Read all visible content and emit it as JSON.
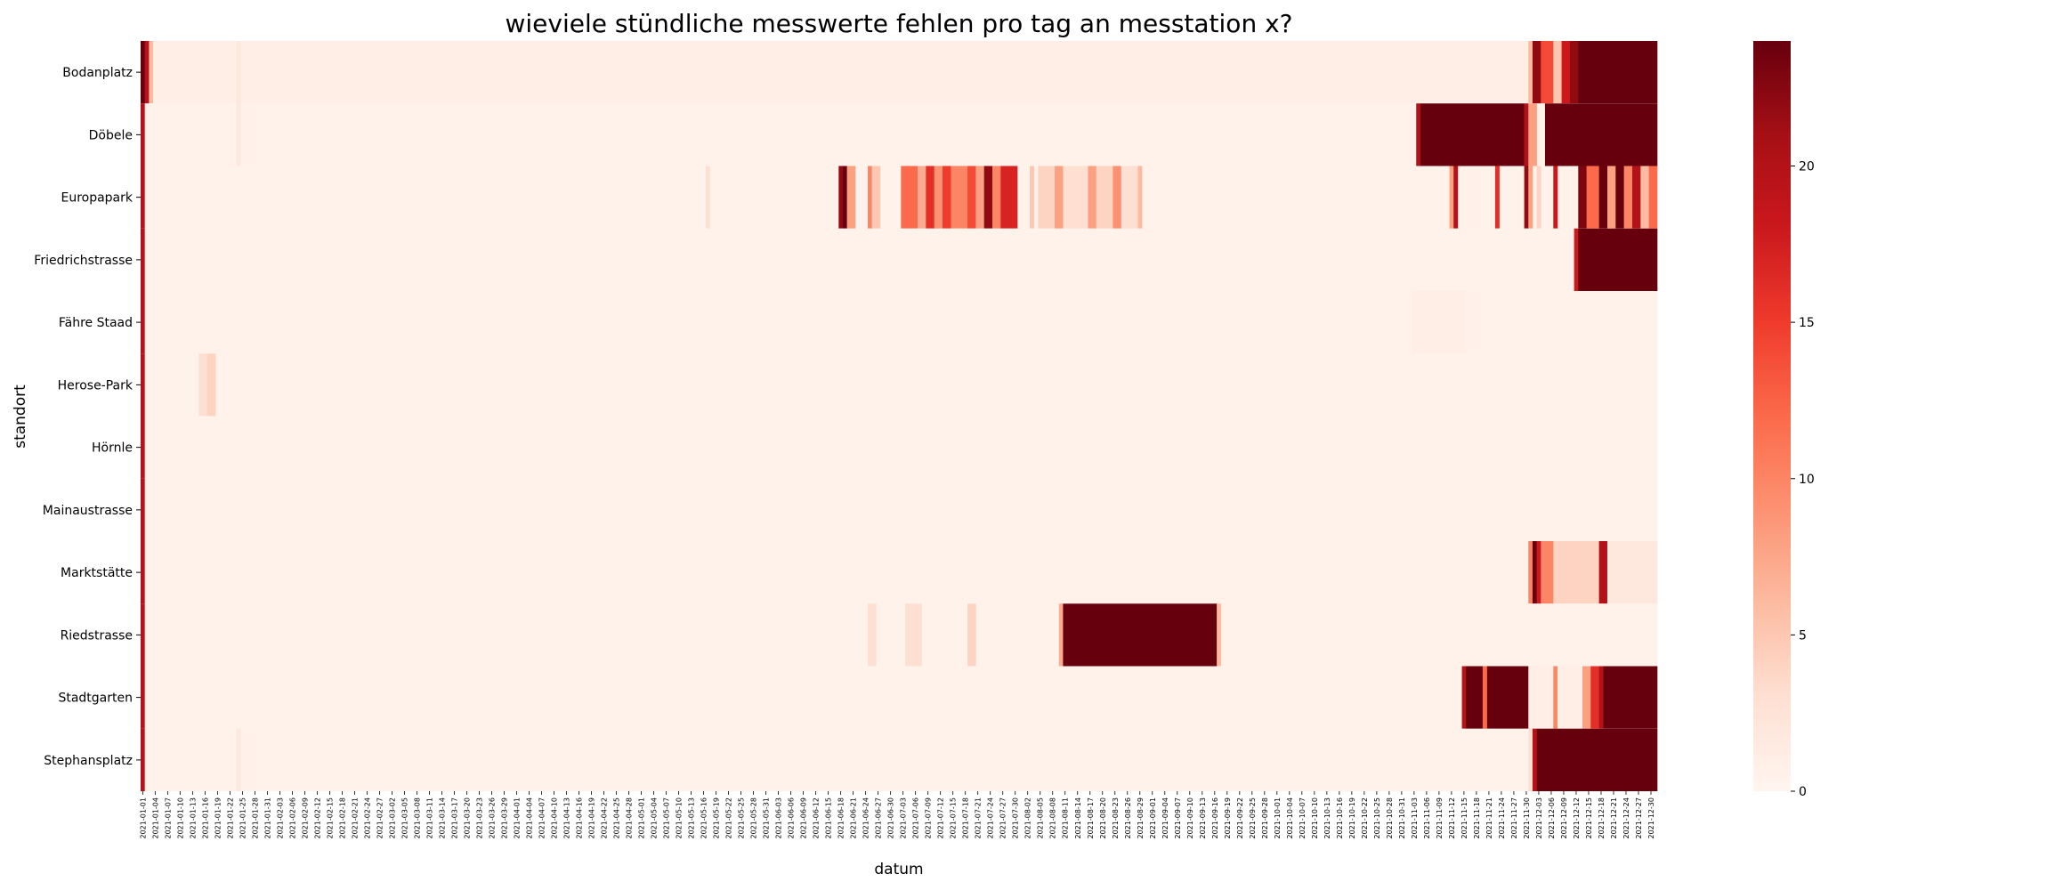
{
  "chart_data": {
    "type": "heatmap",
    "title": "wieviele stündliche messwerte fehlen pro tag an messtation x?",
    "xlabel": "datum",
    "ylabel": "standort",
    "rows": [
      "Bodanplatz",
      "Döbele",
      "Europapark",
      "Friedrichstrasse",
      "Fähre Staad",
      "Herose-Park",
      "Hörnle",
      "Mainaustrasse",
      "Marktstätte",
      "Riedstrasse",
      "Stadtgarten",
      "Stephansplatz"
    ],
    "x_start_date": "2021-01-01",
    "x_end_date": "2021-12-31",
    "x_tick_every_days": 3,
    "colormap": "Reds",
    "colorbar": {
      "vmin": 0,
      "vmax": 24,
      "ticks": [
        0,
        5,
        10,
        15,
        20
      ]
    },
    "segments": [
      {
        "row": "Bodanplatz",
        "from": "2021-01-01",
        "to": "2021-01-01",
        "value": 24
      },
      {
        "row": "Bodanplatz",
        "from": "2021-01-02",
        "to": "2021-01-02",
        "value": 20
      },
      {
        "row": "Bodanplatz",
        "from": "2021-01-03",
        "to": "2021-01-03",
        "value": 6
      },
      {
        "row": "Bodanplatz",
        "from": "2021-01-04",
        "to": "2021-12-31",
        "value": 1
      },
      {
        "row": "Bodanplatz",
        "from": "2021-01-24",
        "to": "2021-01-24",
        "value": 2
      },
      {
        "row": "Bodanplatz",
        "from": "2021-12-01",
        "to": "2021-12-01",
        "value": 6
      },
      {
        "row": "Bodanplatz",
        "from": "2021-12-02",
        "to": "2021-12-03",
        "value": 22
      },
      {
        "row": "Bodanplatz",
        "from": "2021-12-04",
        "to": "2021-12-06",
        "value": 14
      },
      {
        "row": "Bodanplatz",
        "from": "2021-12-07",
        "to": "2021-12-08",
        "value": 5
      },
      {
        "row": "Bodanplatz",
        "from": "2021-12-09",
        "to": "2021-12-10",
        "value": 18
      },
      {
        "row": "Bodanplatz",
        "from": "2021-12-11",
        "to": "2021-12-12",
        "value": 22
      },
      {
        "row": "Bodanplatz",
        "from": "2021-12-13",
        "to": "2021-12-31",
        "value": 24
      },
      {
        "row": "Döbele",
        "from": "2021-01-01",
        "to": "2021-01-01",
        "value": 20
      },
      {
        "row": "Döbele",
        "from": "2021-01-02",
        "to": "2021-12-31",
        "value": 0.5
      },
      {
        "row": "Döbele",
        "from": "2021-01-24",
        "to": "2021-01-24",
        "value": 2
      },
      {
        "row": "Döbele",
        "from": "2021-11-04",
        "to": "2021-11-04",
        "value": 20
      },
      {
        "row": "Döbele",
        "from": "2021-11-05",
        "to": "2021-11-29",
        "value": 24
      },
      {
        "row": "Döbele",
        "from": "2021-11-30",
        "to": "2021-11-30",
        "value": 20
      },
      {
        "row": "Döbele",
        "from": "2021-12-01",
        "to": "2021-12-02",
        "value": 8
      },
      {
        "row": "Döbele",
        "from": "2021-12-05",
        "to": "2021-12-31",
        "value": 24
      },
      {
        "row": "Europapark",
        "from": "2021-01-01",
        "to": "2021-01-01",
        "value": 20
      },
      {
        "row": "Europapark",
        "from": "2021-01-02",
        "to": "2021-12-31",
        "value": 0.5
      },
      {
        "row": "Europapark",
        "from": "2021-05-17",
        "to": "2021-05-17",
        "value": 3
      },
      {
        "row": "Europapark",
        "from": "2021-06-18",
        "to": "2021-06-18",
        "value": 22
      },
      {
        "row": "Europapark",
        "from": "2021-06-19",
        "to": "2021-06-19",
        "value": 24
      },
      {
        "row": "Europapark",
        "from": "2021-06-20",
        "to": "2021-06-21",
        "value": 8
      },
      {
        "row": "Europapark",
        "from": "2021-06-25",
        "to": "2021-06-25",
        "value": 10
      },
      {
        "row": "Europapark",
        "from": "2021-06-26",
        "to": "2021-06-27",
        "value": 5
      },
      {
        "row": "Europapark",
        "from": "2021-07-03",
        "to": "2021-07-06",
        "value": 12
      },
      {
        "row": "Europapark",
        "from": "2021-07-07",
        "to": "2021-07-08",
        "value": 7
      },
      {
        "row": "Europapark",
        "from": "2021-07-09",
        "to": "2021-07-10",
        "value": 16
      },
      {
        "row": "Europapark",
        "from": "2021-07-11",
        "to": "2021-07-12",
        "value": 9
      },
      {
        "row": "Europapark",
        "from": "2021-07-13",
        "to": "2021-07-14",
        "value": 15
      },
      {
        "row": "Europapark",
        "from": "2021-07-15",
        "to": "2021-07-18",
        "value": 10
      },
      {
        "row": "Europapark",
        "from": "2021-07-19",
        "to": "2021-07-20",
        "value": 14
      },
      {
        "row": "Europapark",
        "from": "2021-07-21",
        "to": "2021-07-22",
        "value": 8
      },
      {
        "row": "Europapark",
        "from": "2021-07-23",
        "to": "2021-07-24",
        "value": 22
      },
      {
        "row": "Europapark",
        "from": "2021-07-25",
        "to": "2021-07-26",
        "value": 10
      },
      {
        "row": "Europapark",
        "from": "2021-07-27",
        "to": "2021-07-30",
        "value": 17
      },
      {
        "row": "Europapark",
        "from": "2021-08-03",
        "to": "2021-08-03",
        "value": 5
      },
      {
        "row": "Europapark",
        "from": "2021-08-05",
        "to": "2021-08-08",
        "value": 4
      },
      {
        "row": "Europapark",
        "from": "2021-08-09",
        "to": "2021-08-10",
        "value": 8
      },
      {
        "row": "Europapark",
        "from": "2021-08-11",
        "to": "2021-08-16",
        "value": 3
      },
      {
        "row": "Europapark",
        "from": "2021-08-17",
        "to": "2021-08-18",
        "value": 8
      },
      {
        "row": "Europapark",
        "from": "2021-08-19",
        "to": "2021-08-22",
        "value": 4
      },
      {
        "row": "Europapark",
        "from": "2021-08-23",
        "to": "2021-08-24",
        "value": 9
      },
      {
        "row": "Europapark",
        "from": "2021-08-25",
        "to": "2021-08-28",
        "value": 3
      },
      {
        "row": "Europapark",
        "from": "2021-08-29",
        "to": "2021-08-29",
        "value": 6
      },
      {
        "row": "Europapark",
        "from": "2021-11-12",
        "to": "2021-11-12",
        "value": 8
      },
      {
        "row": "Europapark",
        "from": "2021-11-13",
        "to": "2021-11-13",
        "value": 20
      },
      {
        "row": "Europapark",
        "from": "2021-11-23",
        "to": "2021-11-23",
        "value": 16
      },
      {
        "row": "Europapark",
        "from": "2021-11-30",
        "to": "2021-11-30",
        "value": 22
      },
      {
        "row": "Europapark",
        "from": "2021-12-01",
        "to": "2021-12-01",
        "value": 8
      },
      {
        "row": "Europapark",
        "from": "2021-12-03",
        "to": "2021-12-03",
        "value": 4
      },
      {
        "row": "Europapark",
        "from": "2021-12-07",
        "to": "2021-12-07",
        "value": 18
      },
      {
        "row": "Europapark",
        "from": "2021-12-13",
        "to": "2021-12-14",
        "value": 23
      },
      {
        "row": "Europapark",
        "from": "2021-12-15",
        "to": "2021-12-17",
        "value": 12
      },
      {
        "row": "Europapark",
        "from": "2021-12-18",
        "to": "2021-12-19",
        "value": 24
      },
      {
        "row": "Europapark",
        "from": "2021-12-20",
        "to": "2021-12-21",
        "value": 8
      },
      {
        "row": "Europapark",
        "from": "2021-12-22",
        "to": "2021-12-23",
        "value": 24
      },
      {
        "row": "Europapark",
        "from": "2021-12-24",
        "to": "2021-12-25",
        "value": 10
      },
      {
        "row": "Europapark",
        "from": "2021-12-26",
        "to": "2021-12-27",
        "value": 20
      },
      {
        "row": "Europapark",
        "from": "2021-12-28",
        "to": "2021-12-29",
        "value": 6
      },
      {
        "row": "Europapark",
        "from": "2021-12-30",
        "to": "2021-12-31",
        "value": 12
      },
      {
        "row": "Friedrichstrasse",
        "from": "2021-01-01",
        "to": "2021-01-01",
        "value": 20
      },
      {
        "row": "Friedrichstrasse",
        "from": "2021-01-02",
        "to": "2021-12-31",
        "value": 0.5
      },
      {
        "row": "Friedrichstrasse",
        "from": "2021-12-12",
        "to": "2021-12-12",
        "value": 18
      },
      {
        "row": "Friedrichstrasse",
        "from": "2021-12-13",
        "to": "2021-12-31",
        "value": 24
      },
      {
        "row": "Fähre Staad",
        "from": "2021-01-01",
        "to": "2021-01-01",
        "value": 20
      },
      {
        "row": "Fähre Staad",
        "from": "2021-01-02",
        "to": "2021-12-31",
        "value": 0.5
      },
      {
        "row": "Fähre Staad",
        "from": "2021-11-03",
        "to": "2021-11-15",
        "value": 1
      },
      {
        "row": "Herose-Park",
        "from": "2021-01-01",
        "to": "2021-01-01",
        "value": 20
      },
      {
        "row": "Herose-Park",
        "from": "2021-01-02",
        "to": "2021-12-31",
        "value": 0.5
      },
      {
        "row": "Herose-Park",
        "from": "2021-01-15",
        "to": "2021-01-16",
        "value": 3
      },
      {
        "row": "Herose-Park",
        "from": "2021-01-17",
        "to": "2021-01-18",
        "value": 4
      },
      {
        "row": "Hörnle",
        "from": "2021-01-01",
        "to": "2021-01-01",
        "value": 20
      },
      {
        "row": "Hörnle",
        "from": "2021-01-02",
        "to": "2021-12-31",
        "value": 0.5
      },
      {
        "row": "Mainaustrasse",
        "from": "2021-01-01",
        "to": "2021-01-01",
        "value": 20
      },
      {
        "row": "Mainaustrasse",
        "from": "2021-01-02",
        "to": "2021-12-31",
        "value": 0.5
      },
      {
        "row": "Marktstätte",
        "from": "2021-01-01",
        "to": "2021-01-01",
        "value": 20
      },
      {
        "row": "Marktstätte",
        "from": "2021-01-02",
        "to": "2021-12-31",
        "value": 0.5
      },
      {
        "row": "Marktstätte",
        "from": "2021-12-01",
        "to": "2021-12-01",
        "value": 10
      },
      {
        "row": "Marktstätte",
        "from": "2021-12-02",
        "to": "2021-12-02",
        "value": 24
      },
      {
        "row": "Marktstätte",
        "from": "2021-12-03",
        "to": "2021-12-03",
        "value": 18
      },
      {
        "row": "Marktstätte",
        "from": "2021-12-04",
        "to": "2021-12-06",
        "value": 10
      },
      {
        "row": "Marktstätte",
        "from": "2021-12-07",
        "to": "2021-12-17",
        "value": 4
      },
      {
        "row": "Marktstätte",
        "from": "2021-12-18",
        "to": "2021-12-19",
        "value": 20
      },
      {
        "row": "Marktstätte",
        "from": "2021-12-20",
        "to": "2021-12-31",
        "value": 2
      },
      {
        "row": "Riedstrasse",
        "from": "2021-01-01",
        "to": "2021-01-01",
        "value": 20
      },
      {
        "row": "Riedstrasse",
        "from": "2021-01-02",
        "to": "2021-12-31",
        "value": 0.5
      },
      {
        "row": "Riedstrasse",
        "from": "2021-06-25",
        "to": "2021-06-26",
        "value": 3
      },
      {
        "row": "Riedstrasse",
        "from": "2021-07-04",
        "to": "2021-07-07",
        "value": 3
      },
      {
        "row": "Riedstrasse",
        "from": "2021-07-19",
        "to": "2021-07-20",
        "value": 4
      },
      {
        "row": "Riedstrasse",
        "from": "2021-08-10",
        "to": "2021-08-10",
        "value": 7
      },
      {
        "row": "Riedstrasse",
        "from": "2021-08-11",
        "to": "2021-09-16",
        "value": 24
      },
      {
        "row": "Riedstrasse",
        "from": "2021-09-17",
        "to": "2021-09-17",
        "value": 6
      },
      {
        "row": "Stadtgarten",
        "from": "2021-01-01",
        "to": "2021-01-01",
        "value": 20
      },
      {
        "row": "Stadtgarten",
        "from": "2021-01-02",
        "to": "2021-12-31",
        "value": 0.5
      },
      {
        "row": "Stadtgarten",
        "from": "2021-11-15",
        "to": "2021-11-15",
        "value": 20
      },
      {
        "row": "Stadtgarten",
        "from": "2021-11-16",
        "to": "2021-12-19",
        "value": 24
      },
      {
        "row": "Stadtgarten",
        "from": "2021-11-20",
        "to": "2021-11-20",
        "value": 12
      },
      {
        "row": "Stadtgarten",
        "from": "2021-12-01",
        "to": "2021-12-06",
        "value": 1
      },
      {
        "row": "Stadtgarten",
        "from": "2021-12-07",
        "to": "2021-12-07",
        "value": 10
      },
      {
        "row": "Stadtgarten",
        "from": "2021-12-08",
        "to": "2021-12-13",
        "value": 1
      },
      {
        "row": "Stadtgarten",
        "from": "2021-12-14",
        "to": "2021-12-15",
        "value": 8
      },
      {
        "row": "Stadtgarten",
        "from": "2021-12-16",
        "to": "2021-12-17",
        "value": 16
      },
      {
        "row": "Stadtgarten",
        "from": "2021-12-18",
        "to": "2021-12-18",
        "value": 20
      },
      {
        "row": "Stadtgarten",
        "from": "2021-12-20",
        "to": "2021-12-31",
        "value": 24
      },
      {
        "row": "Stephansplatz",
        "from": "2021-01-01",
        "to": "2021-01-01",
        "value": 20
      },
      {
        "row": "Stephansplatz",
        "from": "2021-01-02",
        "to": "2021-12-31",
        "value": 0.5
      },
      {
        "row": "Stephansplatz",
        "from": "2021-01-24",
        "to": "2021-01-24",
        "value": 2
      },
      {
        "row": "Stephansplatz",
        "from": "2021-12-01",
        "to": "2021-12-01",
        "value": 3
      },
      {
        "row": "Stephansplatz",
        "from": "2021-12-02",
        "to": "2021-12-02",
        "value": 20
      },
      {
        "row": "Stephansplatz",
        "from": "2021-12-03",
        "to": "2021-12-31",
        "value": 24
      }
    ]
  }
}
